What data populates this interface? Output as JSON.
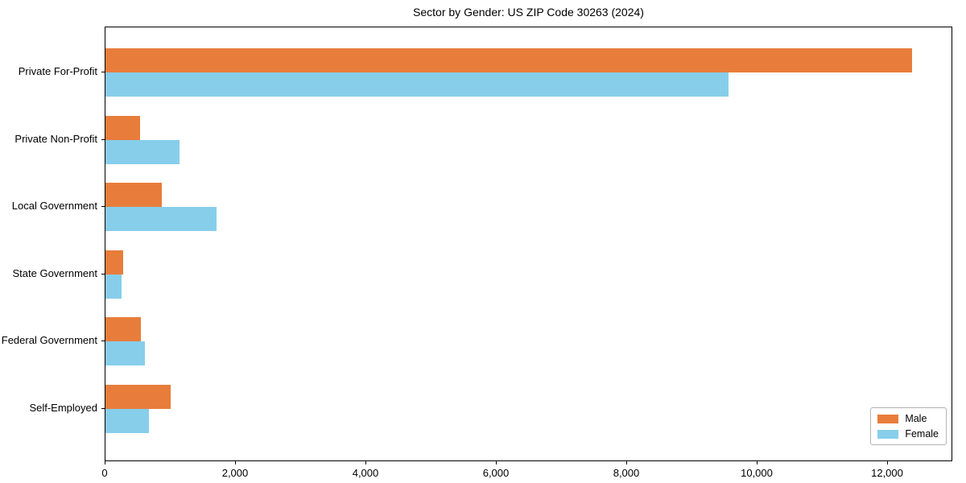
{
  "title": "Sector by Gender: US ZIP Code 30263 (2024)",
  "chart_data": {
    "type": "bar",
    "orientation": "horizontal",
    "title": "Sector by Gender: US ZIP Code 30263 (2024)",
    "categories": [
      "Private For-Profit",
      "Private Non-Profit",
      "Local Government",
      "State Government",
      "Federal Government",
      "Self-Employed"
    ],
    "series": [
      {
        "name": "Male",
        "color": "#e87d3b",
        "values": [
          12370,
          525,
          860,
          267,
          545,
          1000
        ]
      },
      {
        "name": "Female",
        "color": "#87ceeb",
        "values": [
          9560,
          1130,
          1700,
          250,
          605,
          660
        ]
      }
    ],
    "xlabel": "",
    "ylabel": "",
    "xlim": [
      0,
      13000
    ],
    "xticks": [
      0,
      2000,
      4000,
      6000,
      8000,
      10000,
      12000
    ],
    "xtick_labels": [
      "0",
      "2,000",
      "4,000",
      "6,000",
      "8,000",
      "10,000",
      "12,000"
    ],
    "legend_position": "lower right",
    "legend_entries": [
      "Male",
      "Female"
    ],
    "grid": false
  }
}
